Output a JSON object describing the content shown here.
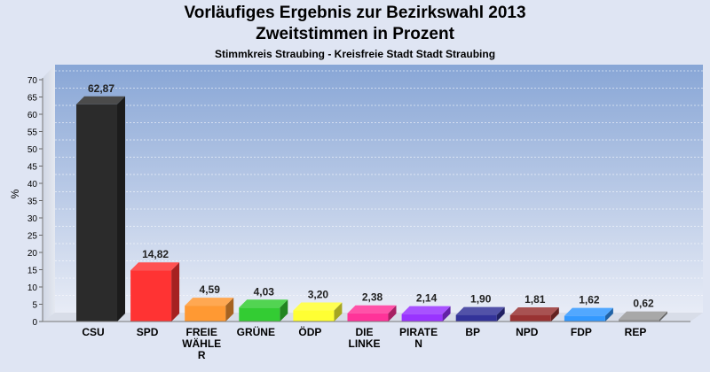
{
  "chart_data": {
    "type": "bar",
    "title": "Vorläufiges Ergebnis zur Bezirkswahl 2013",
    "title2": "Zweitstimmen in Prozent",
    "subtitle": "Stimmkreis Straubing - Kreisfreie Stadt Stadt Straubing",
    "ylabel": "%",
    "ylim": [
      0,
      70
    ],
    "yticks": [
      0,
      5,
      10,
      15,
      20,
      25,
      30,
      35,
      40,
      45,
      50,
      55,
      60,
      65,
      70
    ],
    "grid": true,
    "categories": [
      [
        "CSU"
      ],
      [
        "SPD"
      ],
      [
        "FREIE",
        "WÄHLE",
        "R"
      ],
      [
        "GRÜNE"
      ],
      [
        "ÖDP"
      ],
      [
        "DIE",
        "LINKE"
      ],
      [
        "PIRATE",
        "N"
      ],
      [
        "BP"
      ],
      [
        "NPD"
      ],
      [
        "FDP"
      ],
      [
        "REP"
      ]
    ],
    "values": [
      62.87,
      14.82,
      4.59,
      4.03,
      3.2,
      2.38,
      2.14,
      1.9,
      1.81,
      1.62,
      0.62
    ],
    "value_labels": [
      "62,87",
      "14,82",
      "4,59",
      "4,03",
      "3,20",
      "2,38",
      "2,14",
      "1,90",
      "1,81",
      "1,62",
      "0,62"
    ],
    "colors": [
      "#2b2b2b",
      "#ff3333",
      "#ff9933",
      "#33cc33",
      "#ffff33",
      "#ff3399",
      "#9933ff",
      "#333399",
      "#993333",
      "#3399ff",
      "#999999"
    ]
  }
}
